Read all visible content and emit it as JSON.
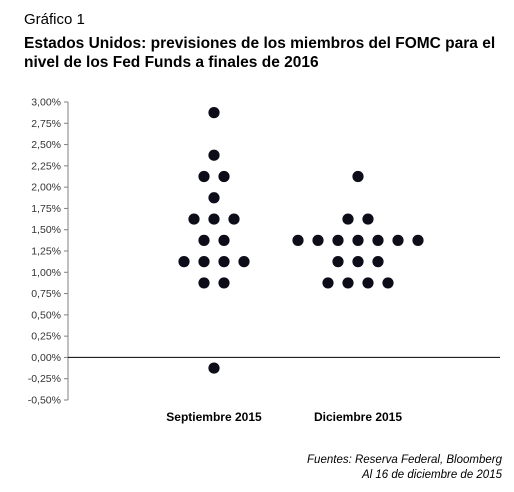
{
  "header": {
    "label": "Gráfico 1",
    "title": "Estados Unidos: previsiones de los miembros del FOMC para el nivel de los Fed Funds a finales de 2016"
  },
  "chart_data": {
    "type": "scatter",
    "style": "dot plot",
    "categories": [
      "Septiembre 2015",
      "Diciembre 2015"
    ],
    "y_ticks": [
      "3,00%",
      "2,75%",
      "2,50%",
      "2,25%",
      "2,00%",
      "1,75%",
      "1,50%",
      "1,25%",
      "1,00%",
      "0,75%",
      "0,50%",
      "0,25%",
      "0,00%",
      "-0,25%",
      "-0,50%"
    ],
    "ylim": [
      -0.5,
      3.0
    ],
    "grid": false,
    "zero_line": true,
    "dot_color": "#0d0d1a",
    "series": [
      {
        "category": "Septiembre 2015",
        "points": [
          {
            "y": 2.875,
            "count": 1
          },
          {
            "y": 2.375,
            "count": 1
          },
          {
            "y": 2.125,
            "count": 2
          },
          {
            "y": 1.875,
            "count": 1
          },
          {
            "y": 1.625,
            "count": 3
          },
          {
            "y": 1.375,
            "count": 2
          },
          {
            "y": 1.125,
            "count": 4
          },
          {
            "y": 0.875,
            "count": 2
          },
          {
            "y": -0.125,
            "count": 1
          }
        ]
      },
      {
        "category": "Diciembre 2015",
        "points": [
          {
            "y": 2.125,
            "count": 1
          },
          {
            "y": 1.625,
            "count": 2
          },
          {
            "y": 1.375,
            "count": 7
          },
          {
            "y": 1.125,
            "count": 3
          },
          {
            "y": 0.875,
            "count": 4
          }
        ]
      }
    ]
  },
  "footer": {
    "source": "Fuentes: Reserva Federal, Bloomberg",
    "date": "Al 16 de diciembre de 2015"
  }
}
